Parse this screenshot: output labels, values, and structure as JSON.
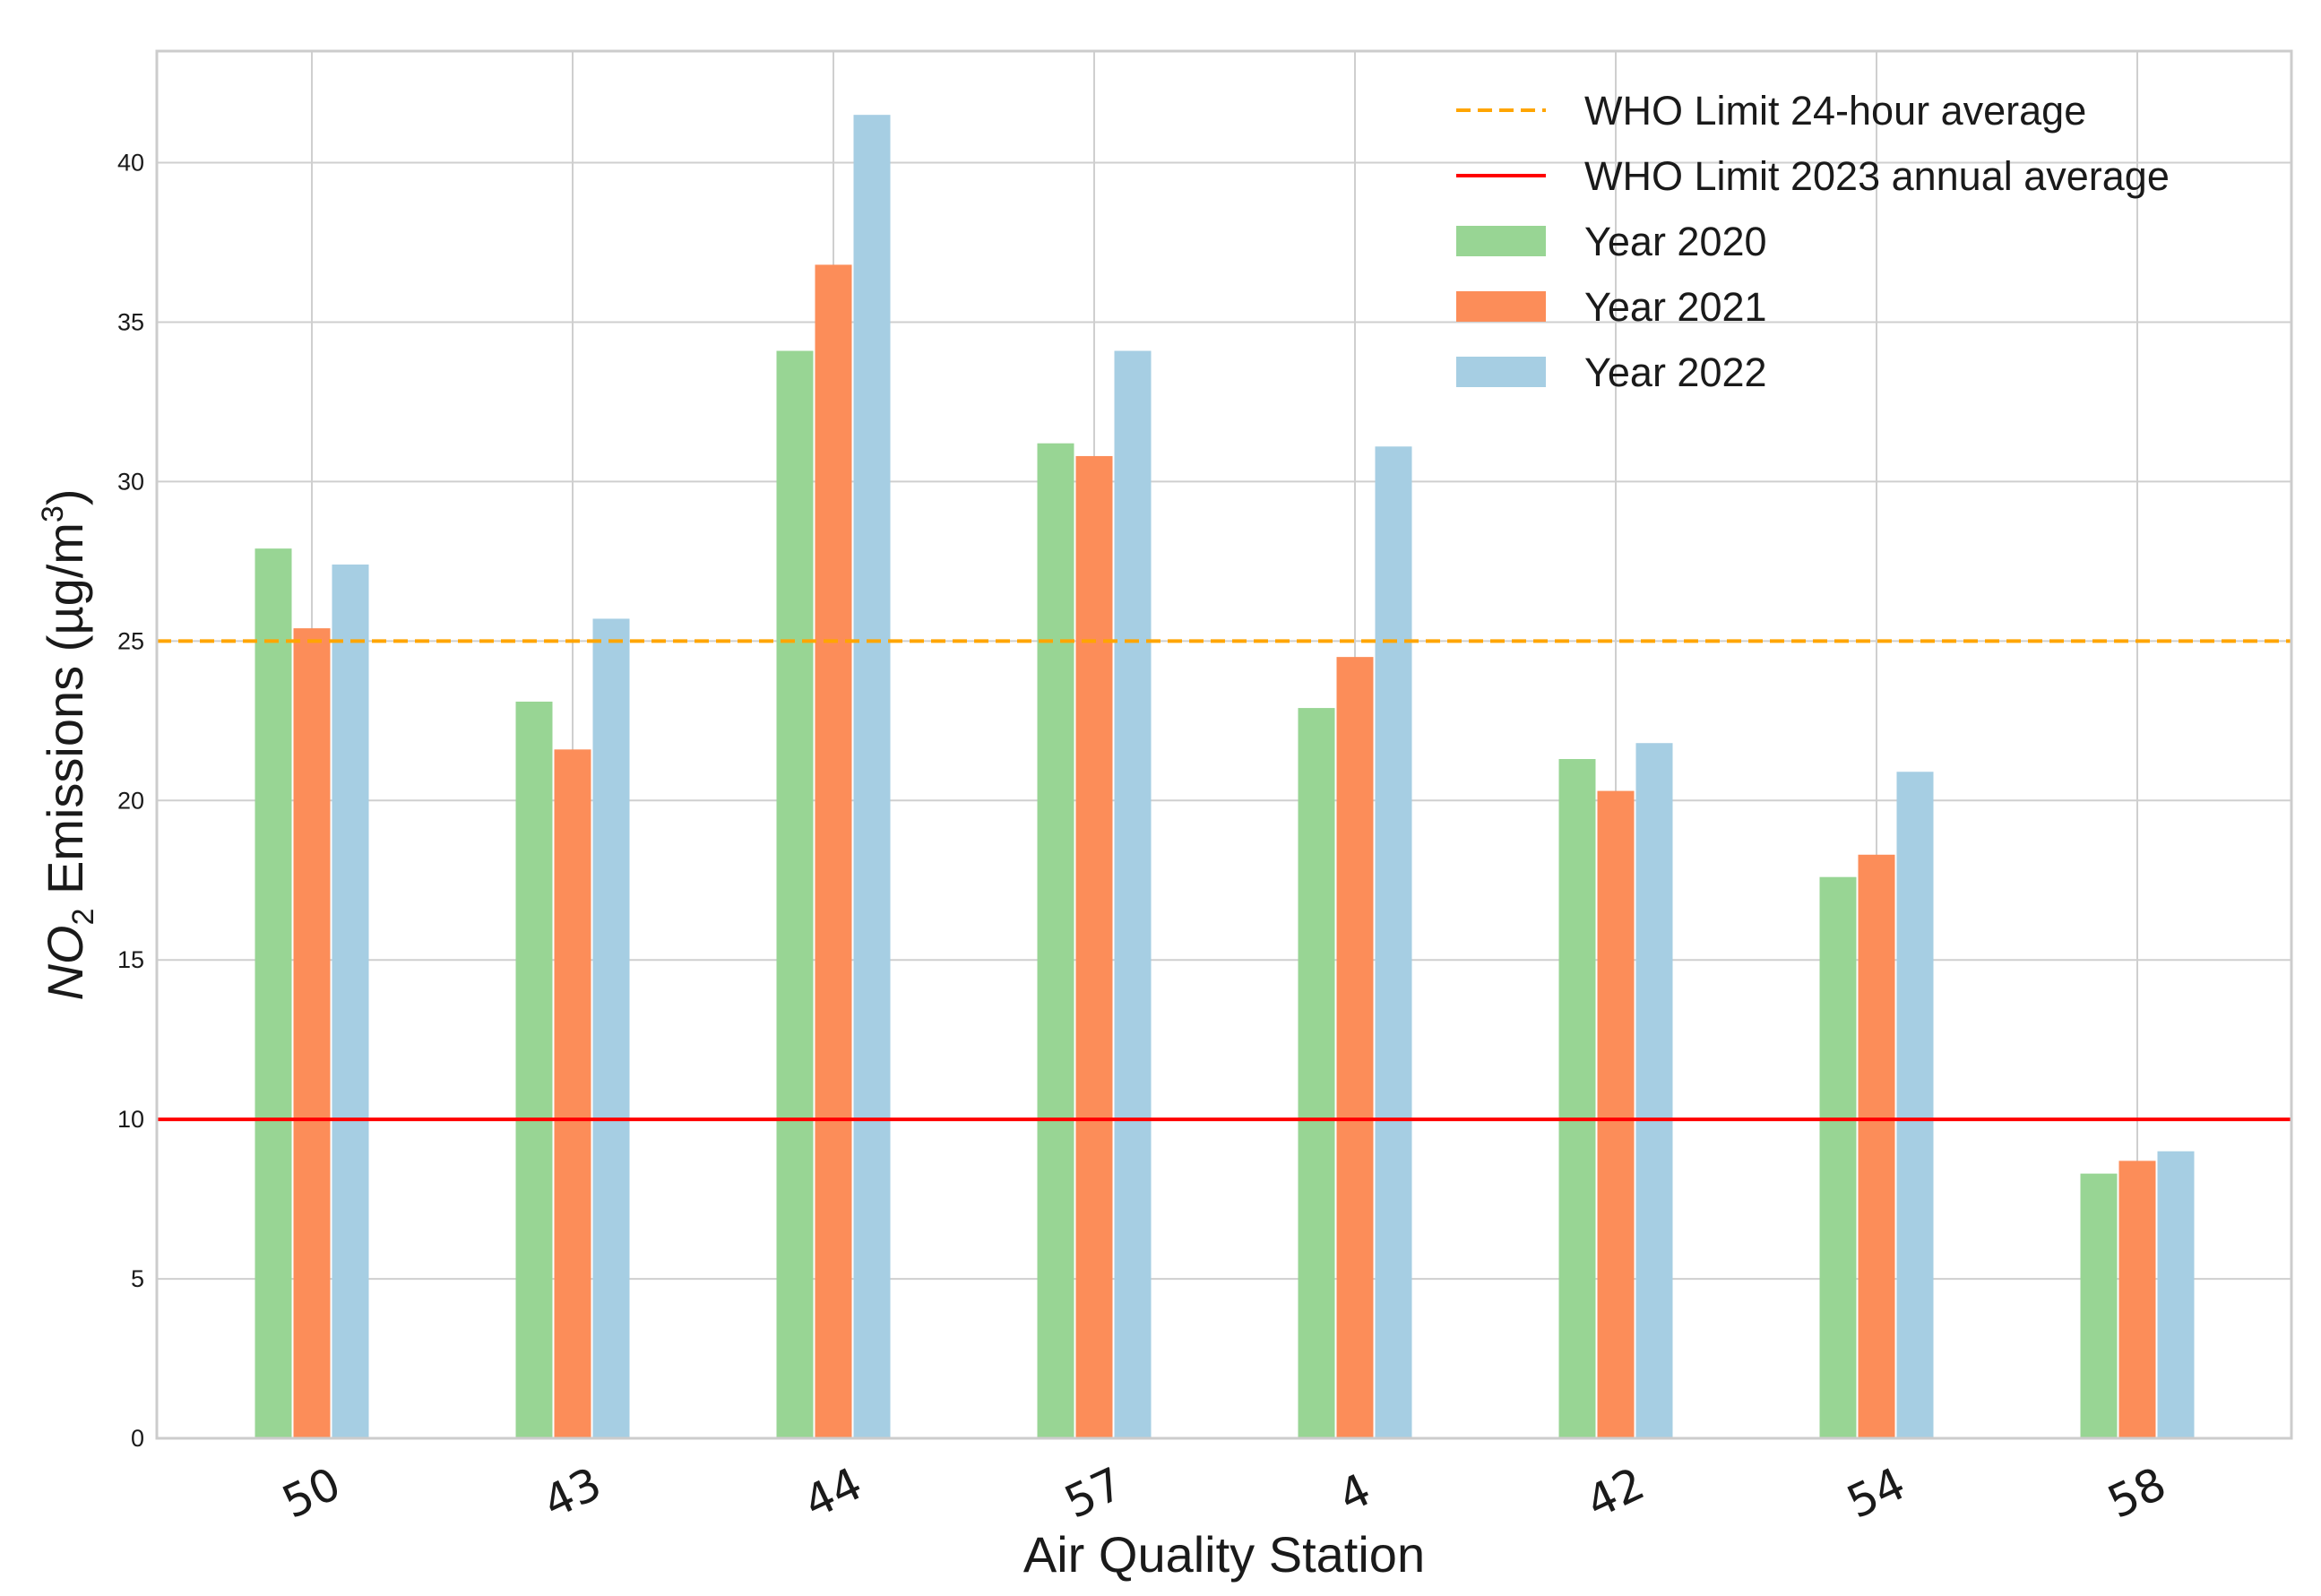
{
  "chart_data": {
    "type": "bar",
    "xlabel": "Air Quality Station",
    "ylabel": {
      "italic": "NO",
      "sub": "2",
      "rest": " Emissions (µg/m",
      "sup": "3",
      "close": ")"
    },
    "ylim": [
      0,
      43.5
    ],
    "yticks": [
      0,
      5,
      10,
      15,
      20,
      25,
      30,
      35,
      40
    ],
    "grid": true,
    "legend_position": "top-right",
    "categories": [
      "50",
      "43",
      "44",
      "57",
      "4",
      "42",
      "54",
      "58"
    ],
    "series": [
      {
        "name": "Year 2020",
        "color": "#98d594",
        "values": [
          27.9,
          23.1,
          34.1,
          31.2,
          22.9,
          21.3,
          17.6,
          8.3
        ]
      },
      {
        "name": "Year 2021",
        "color": "#fc8d59",
        "values": [
          25.4,
          21.6,
          36.8,
          30.8,
          24.5,
          20.3,
          18.3,
          8.7
        ]
      },
      {
        "name": "Year 2022",
        "color": "#a6cee3",
        "values": [
          27.4,
          25.7,
          41.5,
          34.1,
          31.1,
          21.8,
          20.9,
          9.0
        ]
      }
    ],
    "reference_lines": [
      {
        "name": "WHO Limit 24-hour average",
        "value": 25,
        "color": "#ffa500",
        "style": "dashed"
      },
      {
        "name": "WHO Limit 2023 annual average",
        "value": 10,
        "color": "#ff0000",
        "style": "solid"
      }
    ]
  }
}
